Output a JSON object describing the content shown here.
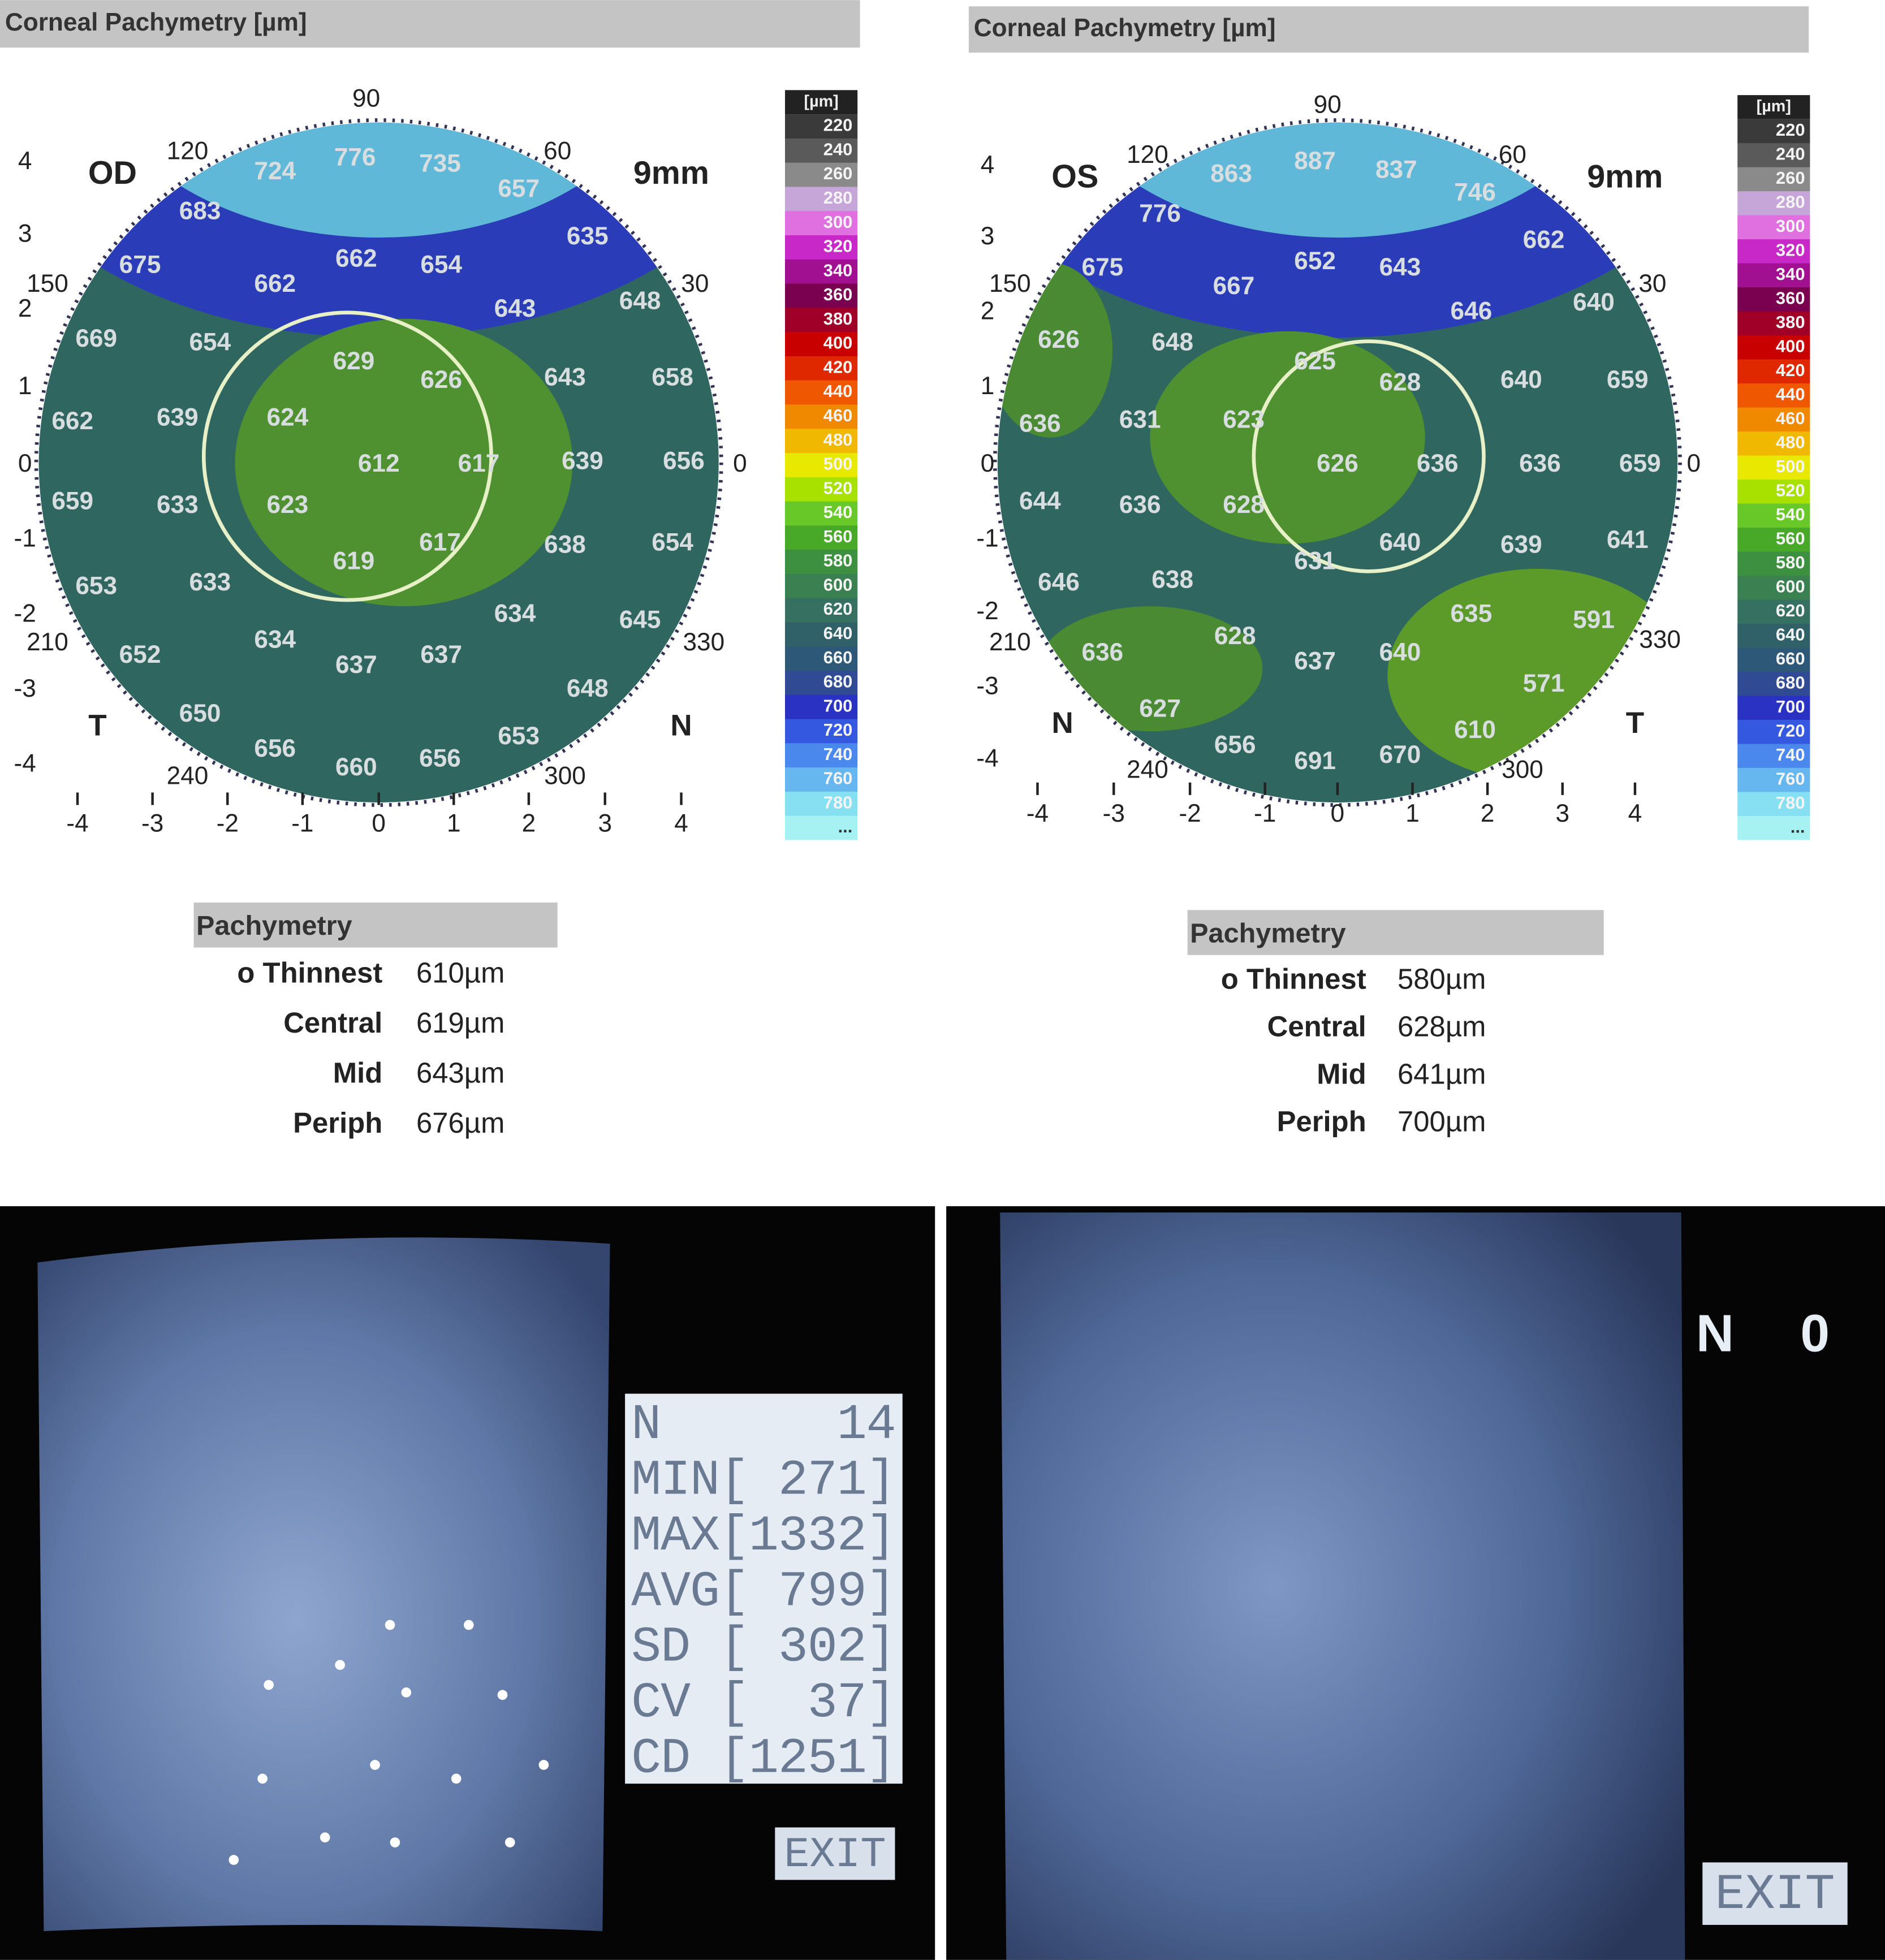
{
  "panels": [
    {
      "title": "Corneal Pachymetry [µm]",
      "eye": "OD",
      "size": "9mm",
      "angles": [
        90,
        120,
        60,
        150,
        30,
        0,
        210,
        330,
        240,
        300
      ],
      "quadrants": [
        "T",
        "N"
      ],
      "yticks": [
        4,
        3,
        2,
        1,
        0,
        -1,
        -2,
        -3,
        -4
      ],
      "xticks": [
        -4,
        -3,
        -2,
        -1,
        0,
        1,
        2,
        3,
        4
      ],
      "map_values": [
        776,
        724,
        735,
        683,
        657,
        635,
        675,
        662,
        654,
        662,
        648,
        643,
        669,
        654,
        629,
        626,
        643,
        658,
        662,
        639,
        624,
        612,
        617,
        639,
        656,
        659,
        633,
        623,
        617,
        638,
        654,
        619,
        653,
        633,
        634,
        645,
        634,
        652,
        637,
        637,
        648,
        650,
        653,
        656,
        660,
        656
      ],
      "scale": {
        "unit": "[µm]",
        "ticks": [
          220,
          240,
          260,
          280,
          300,
          320,
          340,
          360,
          380,
          400,
          420,
          440,
          460,
          480,
          500,
          520,
          540,
          560,
          580,
          600,
          620,
          640,
          660,
          680,
          700,
          720,
          740,
          760,
          780
        ],
        "more": "..."
      },
      "summary": {
        "title": "Pachymetry",
        "rows": [
          [
            "o Thinnest",
            "610µm"
          ],
          [
            "Central",
            "619µm"
          ],
          [
            "Mid",
            "643µm"
          ],
          [
            "Periph",
            "676µm"
          ]
        ]
      }
    },
    {
      "title": "Corneal Pachymetry [µm]",
      "eye": "OS",
      "size": "9mm",
      "angles": [
        90,
        120,
        60,
        150,
        30,
        0,
        210,
        330,
        240,
        300
      ],
      "quadrants": [
        "N",
        "T"
      ],
      "yticks": [
        4,
        3,
        2,
        1,
        0,
        -1,
        -2,
        -3,
        -4
      ],
      "xticks": [
        -4,
        -3,
        -2,
        -1,
        0,
        1,
        2,
        3,
        4
      ],
      "map_values": [
        863,
        887,
        837,
        746,
        776,
        662,
        675,
        652,
        643,
        667,
        646,
        640,
        626,
        648,
        625,
        628,
        640,
        659,
        636,
        631,
        623,
        626,
        636,
        636,
        659,
        644,
        636,
        628,
        640,
        639,
        641,
        631,
        646,
        638,
        635,
        591,
        636,
        628,
        637,
        640,
        571,
        627,
        610,
        656,
        691,
        670
      ],
      "scale": {
        "unit": "[µm]",
        "ticks": [
          220,
          240,
          260,
          280,
          300,
          320,
          340,
          360,
          380,
          400,
          420,
          440,
          460,
          480,
          500,
          520,
          540,
          560,
          580,
          600,
          620,
          640,
          660,
          680,
          700,
          720,
          740,
          760,
          780
        ],
        "more": "..."
      },
      "summary": {
        "title": "Pachymetry",
        "rows": [
          [
            "o Thinnest",
            "580µm"
          ],
          [
            "Central",
            "628µm"
          ],
          [
            "Mid",
            "641µm"
          ],
          [
            "Periph",
            "700µm"
          ]
        ]
      }
    }
  ],
  "microscopy": [
    {
      "readout": [
        "N      14",
        "MIN[ 271]",
        "MAX[1332]",
        "AVG[ 799]",
        "SD [ 302]",
        "CV [  37]",
        "CD [1251]"
      ],
      "exit": "EXIT"
    },
    {
      "labels": [
        "N",
        "0"
      ],
      "exit": "EXIT"
    }
  ]
}
